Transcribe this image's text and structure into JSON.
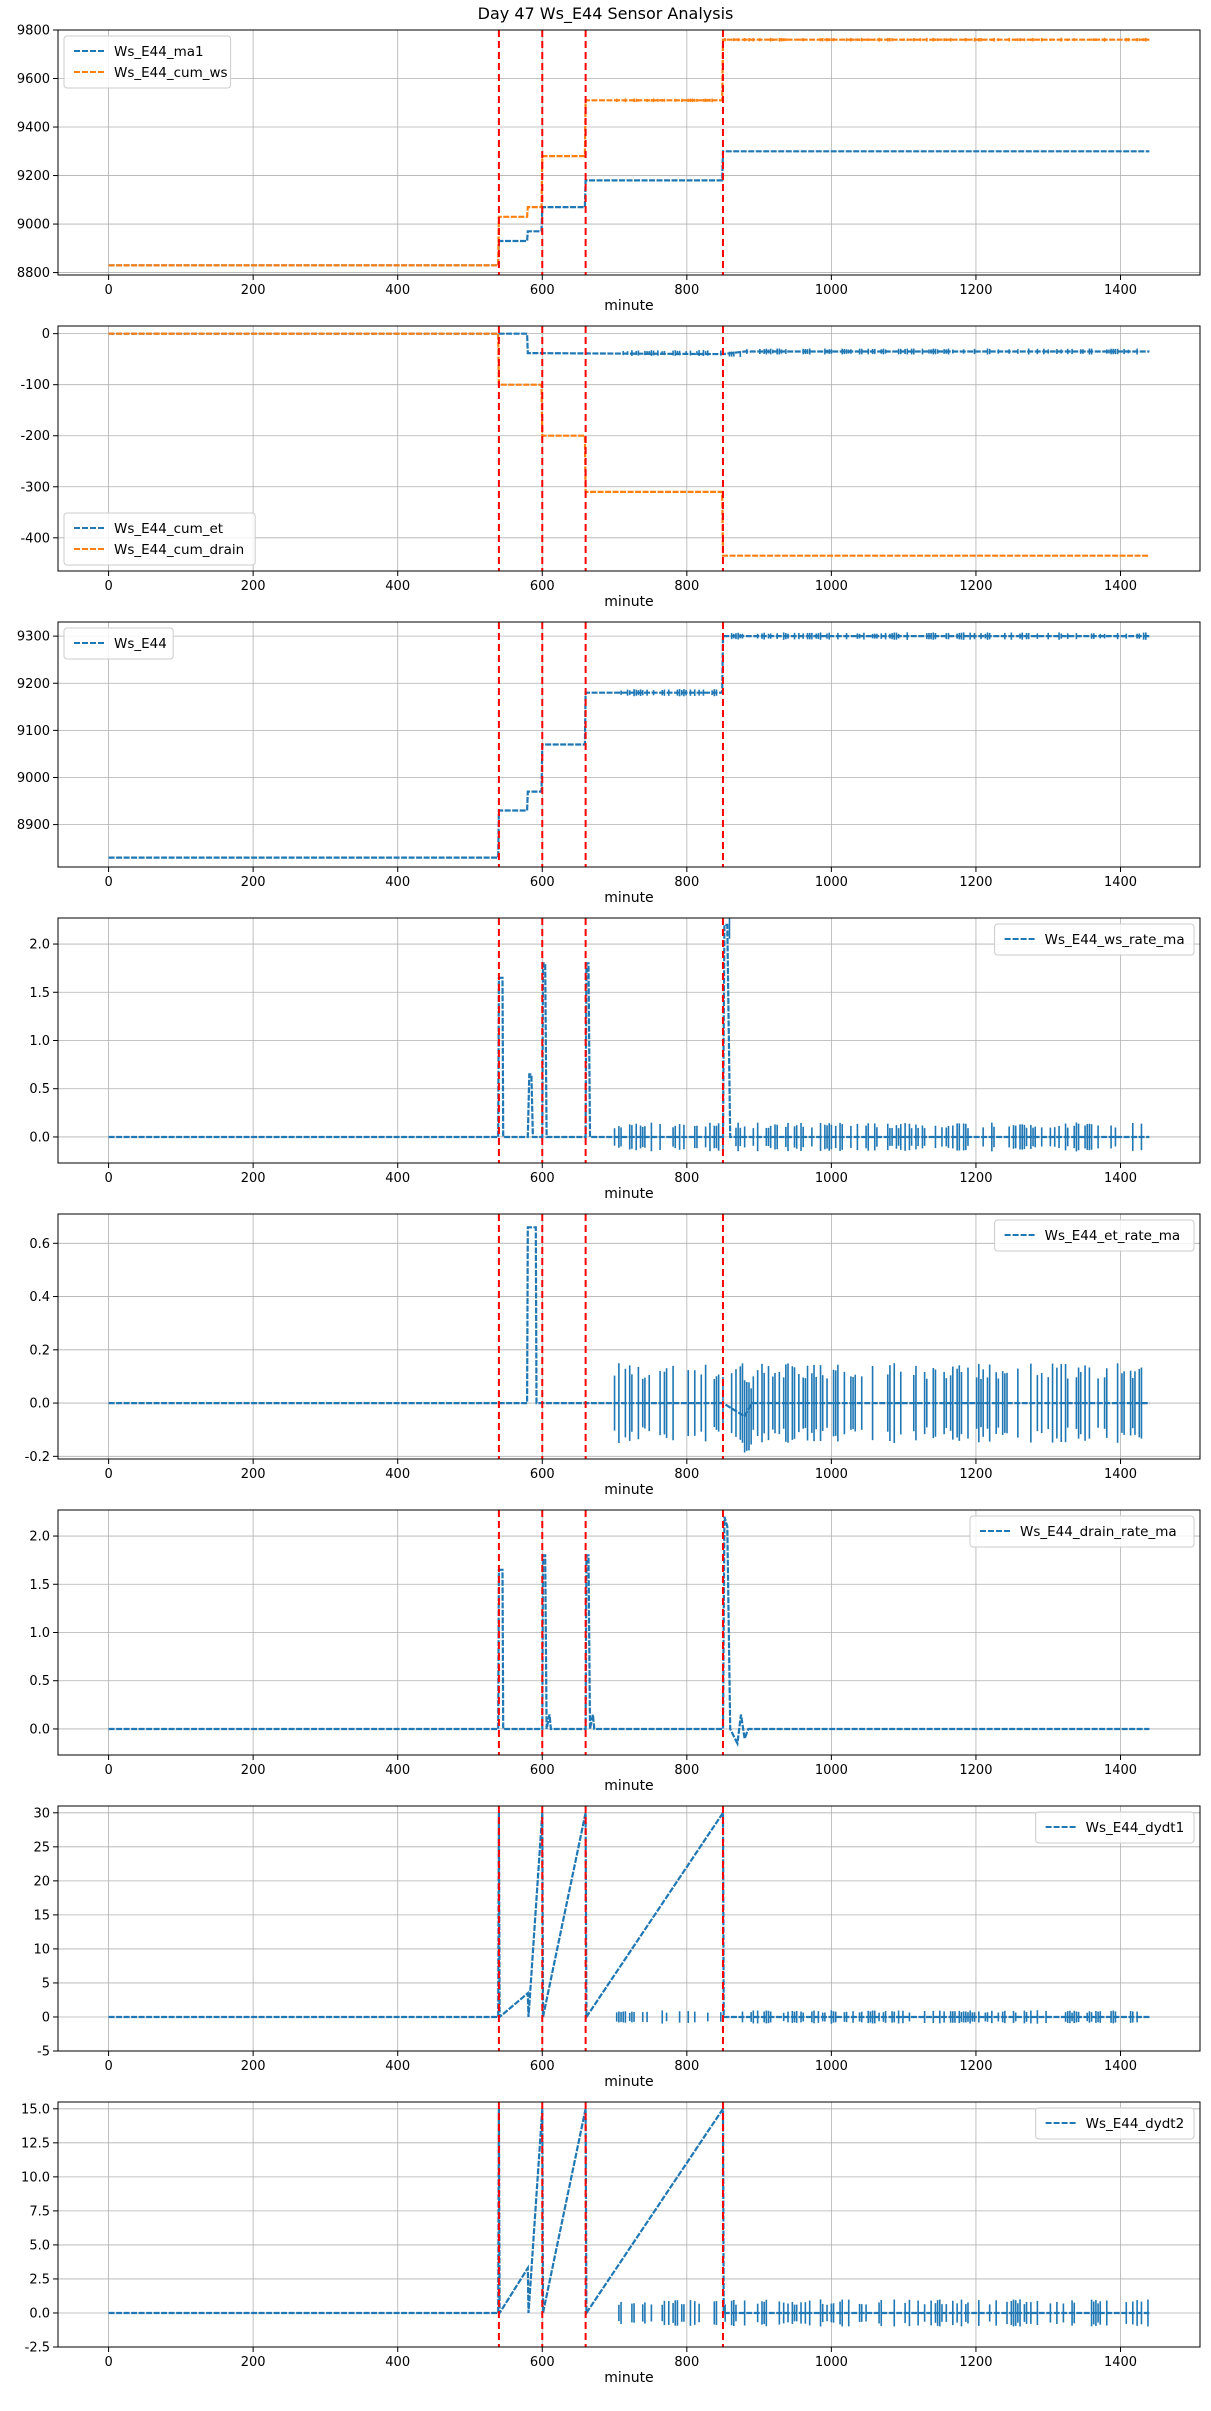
{
  "title": "Day 47 Ws_E44 Sensor Analysis",
  "colors": {
    "blue": "#1f77b4",
    "orange": "#ff7f0e",
    "event_line": "#ff0000",
    "grid": "#b0b0b0"
  },
  "chart_data": [
    {
      "type": "line",
      "xlabel": "minute",
      "xlim": [
        -70,
        1510
      ],
      "xticks": [
        0,
        200,
        400,
        600,
        800,
        1000,
        1200,
        1400
      ],
      "ylim": [
        8790,
        9800
      ],
      "yticks": [
        8800,
        9000,
        9200,
        9400,
        9600,
        9800
      ],
      "grid": true,
      "legend": "top-left",
      "events": [
        540,
        600,
        660,
        850
      ],
      "series": [
        {
          "name": "Ws_E44_ma1",
          "color": "#1f77b4",
          "noise": 0,
          "x": [
            0,
            539,
            540,
            579,
            580,
            599,
            600,
            659,
            660,
            849,
            850,
            1440
          ],
          "y": [
            8830,
            8830,
            8930,
            8930,
            8970,
            8970,
            9070,
            9070,
            9180,
            9180,
            9300,
            9300
          ]
        },
        {
          "name": "Ws_E44_cum_ws",
          "color": "#ff7f0e",
          "noise": 8,
          "x": [
            0,
            539,
            540,
            579,
            580,
            599,
            600,
            659,
            660,
            849,
            850,
            1440
          ],
          "y": [
            8830,
            8830,
            9030,
            9030,
            9070,
            9070,
            9280,
            9280,
            9510,
            9510,
            9760,
            9760
          ]
        }
      ]
    },
    {
      "type": "line",
      "xlabel": "minute",
      "xlim": [
        -70,
        1510
      ],
      "xticks": [
        0,
        200,
        400,
        600,
        800,
        1000,
        1200,
        1400
      ],
      "ylim": [
        -465,
        15
      ],
      "yticks": [
        0,
        -100,
        -200,
        -300,
        -400
      ],
      "grid": true,
      "legend": "bottom-left",
      "events": [
        540,
        600,
        660,
        850
      ],
      "series": [
        {
          "name": "Ws_E44_cum_et",
          "color": "#1f77b4",
          "noise": 6,
          "x": [
            0,
            579,
            580,
            849,
            850,
            880,
            1440
          ],
          "y": [
            0,
            0,
            -38,
            -40,
            -40,
            -35,
            -35
          ]
        },
        {
          "name": "Ws_E44_cum_drain",
          "color": "#ff7f0e",
          "noise": 0,
          "x": [
            0,
            539,
            540,
            599,
            600,
            659,
            660,
            849,
            850,
            1440
          ],
          "y": [
            0,
            0,
            -100,
            -100,
            -200,
            -200,
            -310,
            -310,
            -435,
            -435
          ]
        }
      ]
    },
    {
      "type": "line",
      "xlabel": "minute",
      "xlim": [
        -70,
        1510
      ],
      "xticks": [
        0,
        200,
        400,
        600,
        800,
        1000,
        1200,
        1400
      ],
      "ylim": [
        8810,
        9330
      ],
      "yticks": [
        8900,
        9000,
        9100,
        9200,
        9300
      ],
      "grid": true,
      "legend": "top-left",
      "events": [
        540,
        600,
        660,
        850
      ],
      "series": [
        {
          "name": "Ws_E44",
          "color": "#1f77b4",
          "noise": 8,
          "x": [
            0,
            539,
            540,
            579,
            580,
            599,
            600,
            659,
            660,
            849,
            850,
            1440
          ],
          "y": [
            8830,
            8830,
            8930,
            8930,
            8970,
            8970,
            9070,
            9070,
            9180,
            9180,
            9300,
            9300
          ]
        }
      ]
    },
    {
      "type": "line",
      "xlabel": "minute",
      "xlim": [
        -70,
        1510
      ],
      "xticks": [
        0,
        200,
        400,
        600,
        800,
        1000,
        1200,
        1400
      ],
      "ylim": [
        -0.27,
        2.27
      ],
      "yticks": [
        0.0,
        0.5,
        1.0,
        1.5,
        2.0
      ],
      "grid": true,
      "legend": "top-right",
      "events": [
        540,
        600,
        660,
        850
      ],
      "series": [
        {
          "name": "Ws_E44_ws_rate_ma",
          "color": "#1f77b4",
          "noise": 0.15,
          "x": [
            0,
            539,
            540,
            541,
            545,
            546,
            580,
            582,
            585,
            587,
            600,
            601,
            604,
            606,
            660,
            661,
            664,
            666,
            850,
            852,
            856,
            860,
            1440
          ],
          "y": [
            0,
            0,
            1.65,
            1.65,
            1.65,
            0,
            0,
            0.65,
            0.65,
            0,
            0,
            1.8,
            1.8,
            0,
            0,
            1.8,
            1.8,
            0,
            0,
            2.2,
            2.2,
            0,
            0
          ]
        }
      ]
    },
    {
      "type": "line",
      "xlabel": "minute",
      "xlim": [
        -70,
        1510
      ],
      "xticks": [
        0,
        200,
        400,
        600,
        800,
        1000,
        1200,
        1400
      ],
      "ylim": [
        -0.21,
        0.71
      ],
      "yticks": [
        -0.2,
        0.0,
        0.2,
        0.4,
        0.6
      ],
      "grid": true,
      "legend": "top-right",
      "events": [
        540,
        600,
        660,
        850
      ],
      "series": [
        {
          "name": "Ws_E44_et_rate_ma",
          "color": "#1f77b4",
          "noise": 0.15,
          "x": [
            0,
            579,
            580,
            583,
            588,
            591,
            592,
            849,
            850,
            880,
            890,
            1440
          ],
          "y": [
            0,
            0,
            0.66,
            0.66,
            0.66,
            0.66,
            0,
            0,
            0,
            -0.05,
            0,
            0
          ]
        }
      ]
    },
    {
      "type": "line",
      "xlabel": "minute",
      "xlim": [
        -70,
        1510
      ],
      "xticks": [
        0,
        200,
        400,
        600,
        800,
        1000,
        1200,
        1400
      ],
      "ylim": [
        -0.27,
        2.27
      ],
      "yticks": [
        0.0,
        0.5,
        1.0,
        1.5,
        2.0
      ],
      "grid": true,
      "legend": "top-right",
      "events": [
        540,
        600,
        660,
        850
      ],
      "series": [
        {
          "name": "Ws_E44_drain_rate_ma",
          "color": "#1f77b4",
          "noise": 0,
          "x": [
            0,
            539,
            540,
            541,
            545,
            546,
            600,
            601,
            604,
            606,
            610,
            612,
            660,
            661,
            664,
            666,
            670,
            672,
            850,
            852,
            856,
            860,
            870,
            875,
            880,
            885,
            1440
          ],
          "y": [
            0,
            0,
            1.65,
            1.65,
            1.65,
            0,
            0,
            1.8,
            1.8,
            0,
            0.15,
            0,
            0,
            1.8,
            1.8,
            0,
            0.15,
            0,
            0,
            2.2,
            2.1,
            0,
            -0.15,
            0.15,
            -0.1,
            0,
            0
          ]
        }
      ]
    },
    {
      "type": "line",
      "xlabel": "minute",
      "xlim": [
        -70,
        1510
      ],
      "xticks": [
        0,
        200,
        400,
        600,
        800,
        1000,
        1200,
        1400
      ],
      "ylim": [
        -5,
        31
      ],
      "yticks": [
        -5,
        0,
        5,
        10,
        15,
        20,
        25,
        30
      ],
      "grid": true,
      "legend": "top-right",
      "events": [
        540,
        600,
        660,
        850
      ],
      "series": [
        {
          "name": "Ws_E44_dydt1",
          "color": "#1f77b4",
          "noise": 1,
          "x": [
            0,
            539,
            540,
            541,
            580,
            581,
            600,
            601,
            660,
            661,
            850,
            851,
            1440
          ],
          "y": [
            0,
            0,
            30,
            0,
            3.5,
            0,
            30,
            0,
            30,
            0,
            30,
            0,
            0
          ]
        }
      ]
    },
    {
      "type": "line",
      "xlabel": "minute",
      "xlim": [
        -70,
        1510
      ],
      "xticks": [
        0,
        200,
        400,
        600,
        800,
        1000,
        1200,
        1400
      ],
      "ylim": [
        -2.5,
        15.5
      ],
      "yticks": [
        -2.5,
        0.0,
        2.5,
        5.0,
        7.5,
        10.0,
        12.5,
        15.0
      ],
      "grid": true,
      "legend": "top-right",
      "events": [
        540,
        600,
        660,
        850
      ],
      "series": [
        {
          "name": "Ws_E44_dydt2",
          "color": "#1f77b4",
          "noise": 1,
          "x": [
            0,
            539,
            540,
            541,
            580,
            581,
            600,
            601,
            660,
            661,
            850,
            851,
            1440
          ],
          "y": [
            0,
            0,
            15,
            0,
            3.3,
            0,
            15,
            0,
            15,
            0,
            15,
            0,
            0
          ]
        }
      ]
    }
  ]
}
